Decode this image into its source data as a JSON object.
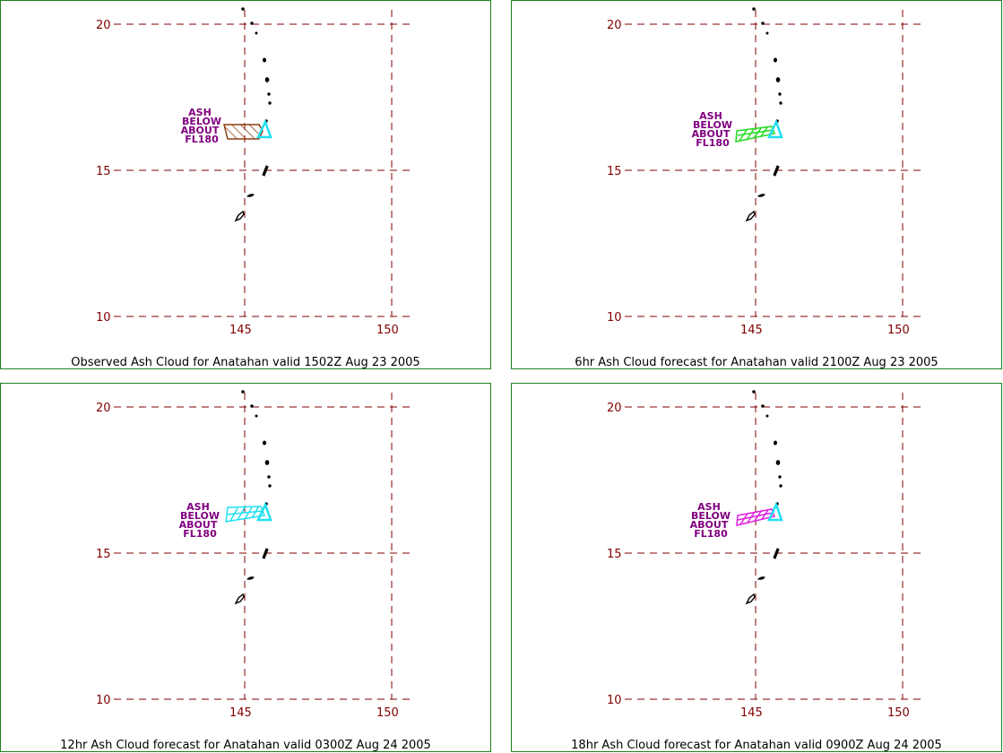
{
  "panels": [
    {
      "caption": "Observed Ash Cloud for Anatahan valid 1502Z Aug 23 2005",
      "ash_label": [
        "ASH",
        "BELOW",
        "ABOUT",
        "FL180"
      ],
      "cloud_color": "#8b3a10",
      "cloud_style": "observed"
    },
    {
      "caption": "6hr Ash Cloud forecast for Anatahan valid 2100Z Aug 23 2005",
      "ash_label": [
        "ASH",
        "BELOW",
        "ABOUT",
        "FL180"
      ],
      "cloud_color": "#22dd22",
      "cloud_style": "forecast"
    },
    {
      "caption": "12hr Ash Cloud forecast for Anatahan valid 0300Z Aug 24 2005",
      "ash_label": [
        "ASH",
        "BELOW",
        "ABOUT",
        "FL180"
      ],
      "cloud_color": "#20e0f0",
      "cloud_style": "forecast"
    },
    {
      "caption": "18hr Ash Cloud forecast for Anatahan valid 0900Z Aug 24 2005",
      "ash_label": [
        "ASH",
        "BELOW",
        "ABOUT",
        "FL180"
      ],
      "cloud_color": "#e020e0",
      "cloud_style": "forecast"
    }
  ],
  "grid": {
    "lat_labels": [
      "20",
      "15",
      "10"
    ],
    "lon_labels": [
      "145",
      "150"
    ],
    "color": "#800000"
  },
  "volcano_marker_color": "#20e0f0"
}
